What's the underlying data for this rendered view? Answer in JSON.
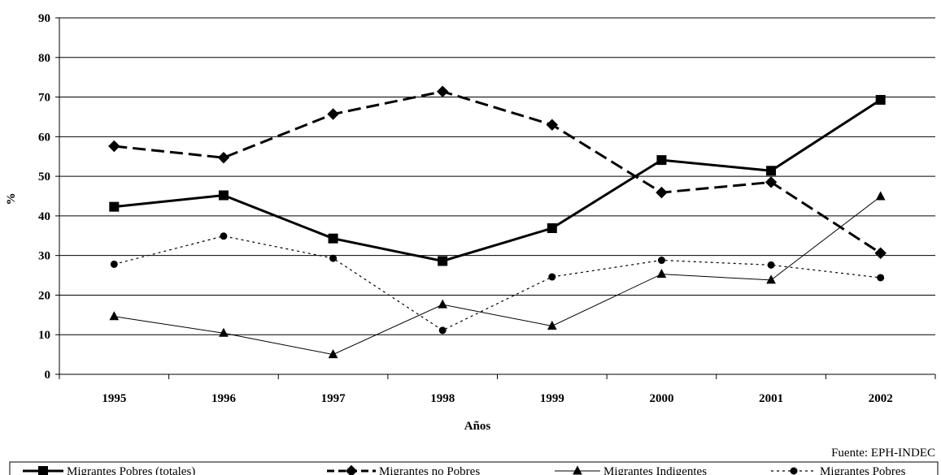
{
  "chart_data": {
    "type": "line",
    "categories": [
      "1995",
      "1996",
      "1997",
      "1998",
      "1999",
      "2000",
      "2001",
      "2002"
    ],
    "xlabel": "Años",
    "ylabel": "%",
    "ylim": [
      0,
      90
    ],
    "yticks": [
      "0",
      "10",
      "20",
      "30",
      "40",
      "50",
      "60",
      "70",
      "80",
      "90"
    ],
    "grid": true,
    "legend_position": "bottom",
    "source": "Fuente: EPH-INDEC",
    "series": [
      {
        "name": "Migrantes Pobres (totales)",
        "values": [
          42.3,
          45.2,
          34.3,
          28.6,
          36.9,
          54.1,
          51.4,
          69.3
        ],
        "color": "#000000",
        "style": "solid-thick",
        "marker": "square"
      },
      {
        "name": "Migrantes no Pobres",
        "values": [
          57.6,
          54.7,
          65.7,
          71.4,
          63.0,
          45.9,
          48.5,
          30.6
        ],
        "color": "#000000",
        "style": "dashed-thick",
        "marker": "diamond"
      },
      {
        "name": "Migrantes Indigentes",
        "values": [
          14.6,
          10.4,
          5.0,
          17.6,
          12.2,
          25.3,
          23.8,
          44.9
        ],
        "color": "#000000",
        "style": "solid-thin",
        "marker": "triangle"
      },
      {
        "name": "Migrantes Pobres",
        "values": [
          27.8,
          34.9,
          29.3,
          11.1,
          24.6,
          28.8,
          27.6,
          24.4
        ],
        "color": "#000000",
        "style": "dotted",
        "marker": "circle"
      }
    ]
  }
}
